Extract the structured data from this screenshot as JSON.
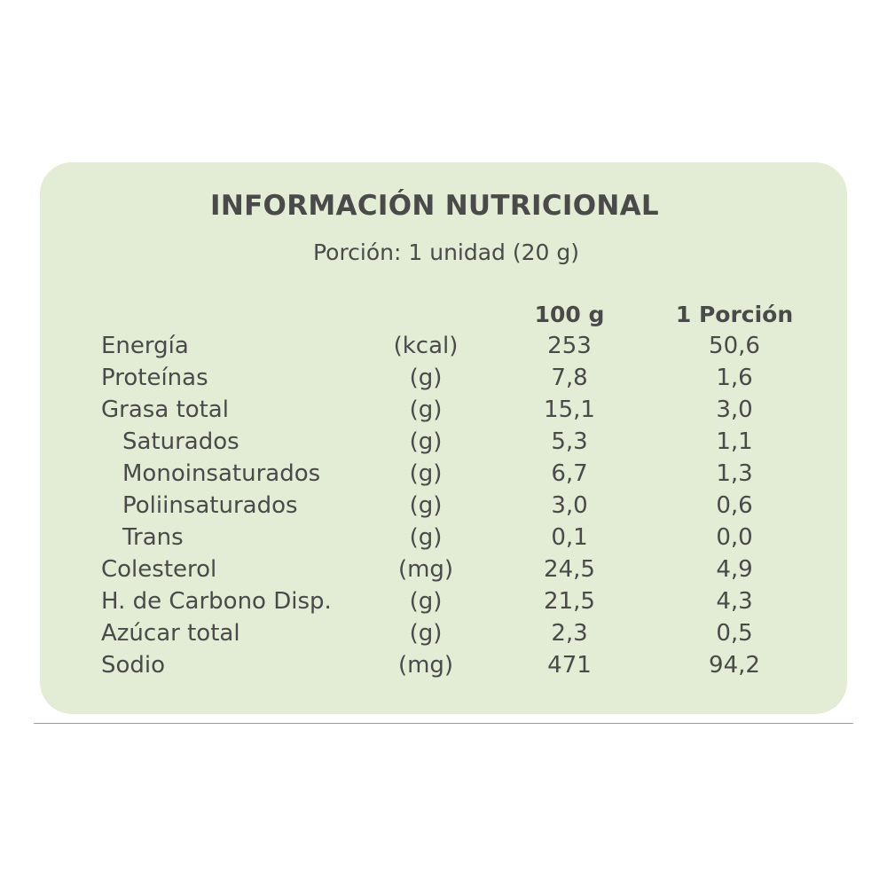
{
  "title": "INFORMACIÓN NUTRICIONAL",
  "portion": "Porción: 1 unidad (20 g)",
  "headers": {
    "per_100g": "100 g",
    "per_portion": "1 Porción"
  },
  "rows": [
    {
      "name": "Energía",
      "unit": "(kcal)",
      "v100": "253",
      "vpor": "50,6",
      "sub": false
    },
    {
      "name": "Proteínas",
      "unit": "(g)",
      "v100": "7,8",
      "vpor": "1,6",
      "sub": false
    },
    {
      "name": "Grasa total",
      "unit": "(g)",
      "v100": "15,1",
      "vpor": "3,0",
      "sub": false
    },
    {
      "name": "Saturados",
      "unit": "(g)",
      "v100": "5,3",
      "vpor": "1,1",
      "sub": true
    },
    {
      "name": "Monoinsaturados",
      "unit": "(g)",
      "v100": "6,7",
      "vpor": "1,3",
      "sub": true
    },
    {
      "name": "Poliinsaturados",
      "unit": "(g)",
      "v100": "3,0",
      "vpor": "0,6",
      "sub": true
    },
    {
      "name": "Trans",
      "unit": "(g)",
      "v100": "0,1",
      "vpor": "0,0",
      "sub": true
    },
    {
      "name": "Colesterol",
      "unit": "(mg)",
      "v100": "24,5",
      "vpor": "4,9",
      "sub": false
    },
    {
      "name": "H. de Carbono Disp.",
      "unit": "(g)",
      "v100": "21,5",
      "vpor": "4,3",
      "sub": false
    },
    {
      "name": "Azúcar total",
      "unit": "(g)",
      "v100": "2,3",
      "vpor": "0,5",
      "sub": false
    },
    {
      "name": "Sodio",
      "unit": "(mg)",
      "v100": "471",
      "vpor": "94,2",
      "sub": false
    }
  ],
  "colors": {
    "panel_background": "#e3ecd5",
    "text": "#4a4a4a"
  }
}
